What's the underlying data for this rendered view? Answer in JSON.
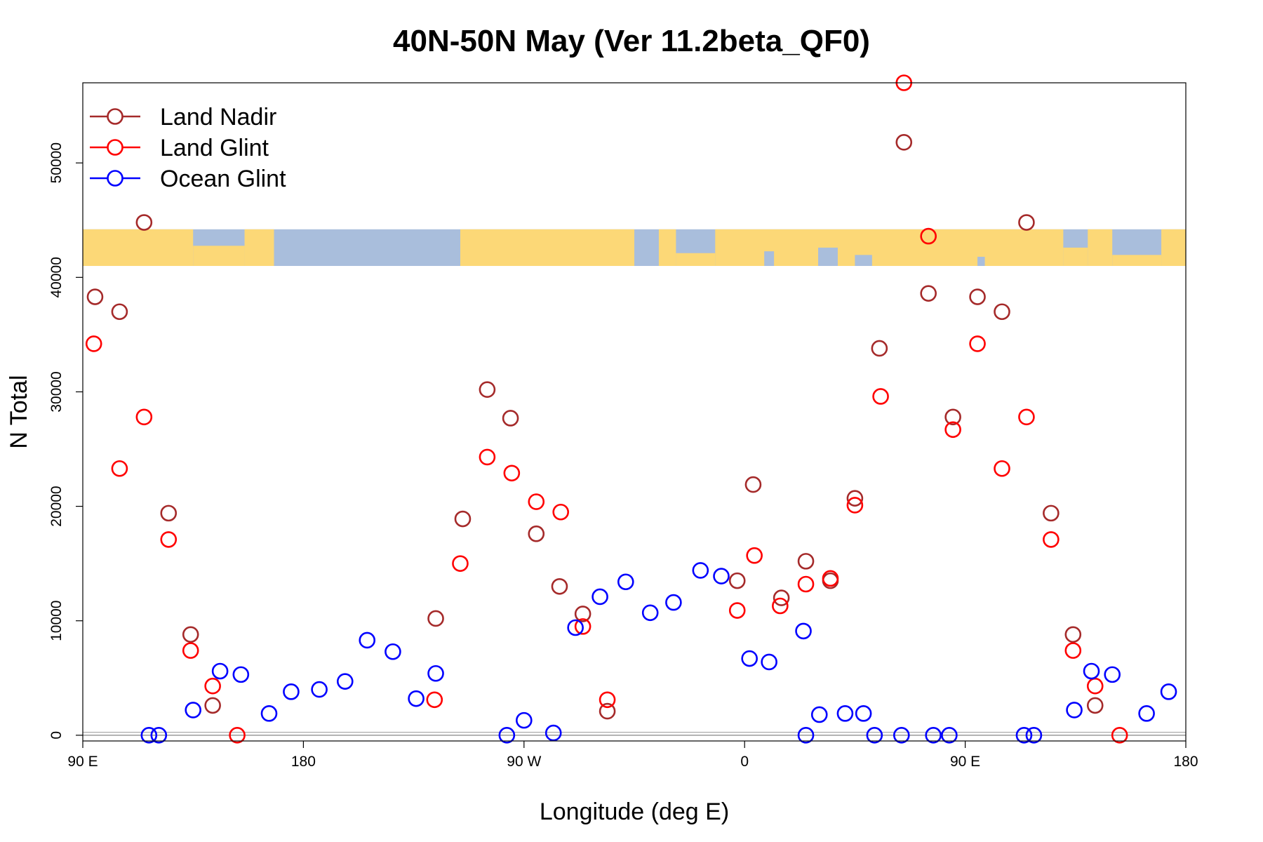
{
  "chart_data": {
    "type": "scatter",
    "title": "40N-50N May (Ver 11.2beta_QF0)",
    "xlabel": "Longitude (deg E)",
    "ylabel": "N Total",
    "x_range": [
      90,
      540
    ],
    "y_range": [
      -500,
      57000
    ],
    "x_ticks": [
      {
        "value": 90,
        "label": "90 E"
      },
      {
        "value": 180,
        "label": "180"
      },
      {
        "value": 270,
        "label": "90 W"
      },
      {
        "value": 360,
        "label": "0"
      },
      {
        "value": 450,
        "label": "90 E"
      },
      {
        "value": 540,
        "label": "180"
      }
    ],
    "y_ticks": [
      0,
      10000,
      20000,
      30000,
      40000,
      50000
    ],
    "legend_position": "top-left",
    "map_band": {
      "y_from": 41000,
      "y_to": 44200,
      "land_color": "#FCD877",
      "ocean_color": "#A9BEDC"
    },
    "series": [
      {
        "name": "Land Nadir",
        "color": "#A52A2A",
        "points": [
          [
            95,
            38300
          ],
          [
            105,
            37000
          ],
          [
            115,
            44800
          ],
          [
            125,
            19400
          ],
          [
            134,
            8800
          ],
          [
            143,
            2600
          ],
          [
            255,
            30200
          ],
          [
            264.5,
            27700
          ],
          [
            275,
            17600
          ],
          [
            284.5,
            13000
          ],
          [
            294,
            10600
          ],
          [
            304,
            2100
          ],
          [
            245,
            18900
          ],
          [
            234,
            10200
          ],
          [
            357,
            13500
          ],
          [
            363.5,
            21900
          ],
          [
            375,
            12000
          ],
          [
            385,
            15200
          ],
          [
            395,
            13500
          ],
          [
            405,
            20700
          ],
          [
            415,
            33800
          ],
          [
            425,
            51800
          ],
          [
            435,
            38600
          ],
          [
            445,
            27800
          ],
          [
            455,
            38300
          ],
          [
            465,
            37000
          ],
          [
            475,
            44800
          ],
          [
            485,
            19400
          ],
          [
            494,
            8800
          ],
          [
            503,
            2600
          ]
        ]
      },
      {
        "name": "Land Glint",
        "color": "#FF0000",
        "points": [
          [
            94.5,
            34200
          ],
          [
            105,
            23300
          ],
          [
            115,
            27800
          ],
          [
            125,
            17100
          ],
          [
            134,
            7400
          ],
          [
            143,
            4300
          ],
          [
            153,
            0
          ],
          [
            233.5,
            3100
          ],
          [
            244,
            15000
          ],
          [
            255,
            24300
          ],
          [
            265,
            22900
          ],
          [
            275,
            20400
          ],
          [
            285,
            19500
          ],
          [
            294,
            9500
          ],
          [
            304,
            3100
          ],
          [
            357,
            10900
          ],
          [
            364,
            15700
          ],
          [
            374.5,
            11300
          ],
          [
            385,
            13200
          ],
          [
            395,
            13700
          ],
          [
            405,
            20100
          ],
          [
            415.5,
            29600
          ],
          [
            425,
            57000
          ],
          [
            435,
            43600
          ],
          [
            445,
            26700
          ],
          [
            455,
            34200
          ],
          [
            465,
            23300
          ],
          [
            475,
            27800
          ],
          [
            485,
            17100
          ],
          [
            494,
            7400
          ],
          [
            503,
            4300
          ],
          [
            513,
            0
          ]
        ]
      },
      {
        "name": "Ocean Glint",
        "color": "#0000FF",
        "points": [
          [
            117,
            0
          ],
          [
            121,
            0
          ],
          [
            135,
            2200
          ],
          [
            146,
            5600
          ],
          [
            154.5,
            5300
          ],
          [
            166,
            1900
          ],
          [
            175,
            3800
          ],
          [
            186.5,
            4000
          ],
          [
            197,
            4700
          ],
          [
            206,
            8300
          ],
          [
            216.5,
            7300
          ],
          [
            226,
            3200
          ],
          [
            234,
            5400
          ],
          [
            263,
            0
          ],
          [
            270,
            1300
          ],
          [
            282,
            200
          ],
          [
            291,
            9400
          ],
          [
            301,
            12100
          ],
          [
            311.5,
            13400
          ],
          [
            321.5,
            10700
          ],
          [
            331,
            11600
          ],
          [
            342,
            14400
          ],
          [
            350.5,
            13900
          ],
          [
            362,
            6700
          ],
          [
            370,
            6400
          ],
          [
            384,
            9100
          ],
          [
            385,
            0
          ],
          [
            390.5,
            1800
          ],
          [
            401,
            1900
          ],
          [
            408.5,
            1900
          ],
          [
            413,
            0
          ],
          [
            424,
            0
          ],
          [
            437,
            0
          ],
          [
            443.5,
            0
          ],
          [
            474,
            0
          ],
          [
            478,
            0
          ],
          [
            494.5,
            2200
          ],
          [
            501.5,
            5600
          ],
          [
            510,
            5300
          ],
          [
            524,
            1900
          ],
          [
            533,
            3800
          ]
        ]
      }
    ]
  }
}
